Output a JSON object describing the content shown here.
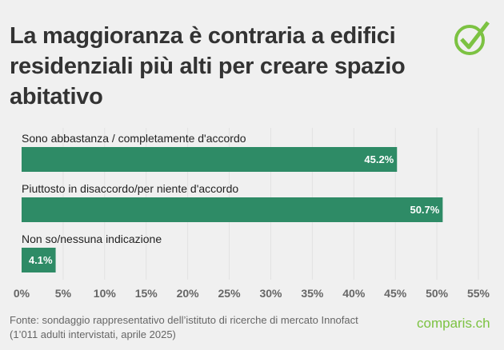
{
  "chart_data": {
    "type": "bar",
    "orientation": "horizontal",
    "title": "La maggioranza è contraria a edifici residenziali più alti per creare spazio abitativo",
    "categories": [
      "Sono abbastanza / completamente d'accordo",
      "Piuttosto in disaccordo/per niente d'accordo",
      "Non so/nessuna indicazione"
    ],
    "values": [
      45.2,
      50.7,
      4.1
    ],
    "value_labels": [
      "45.2%",
      "50.7%",
      "4.1%"
    ],
    "xlim": [
      0,
      55
    ],
    "ticks": [
      "0%",
      "5%",
      "10%",
      "15%",
      "20%",
      "25%",
      "30%",
      "35%",
      "40%",
      "45%",
      "50%",
      "55%"
    ],
    "grid": true,
    "bar_color": "#2e8b66"
  },
  "source": {
    "line1": "Fonte: sondaggio rappresentativo dell’istituto di ricerche di mercato Innofact",
    "line2": "(1’011 adulti intervistati, aprile 2025)"
  },
  "logo": {
    "text": "comparis.ch",
    "color": "#7cc242"
  },
  "icon": "checkmark-circle-icon"
}
